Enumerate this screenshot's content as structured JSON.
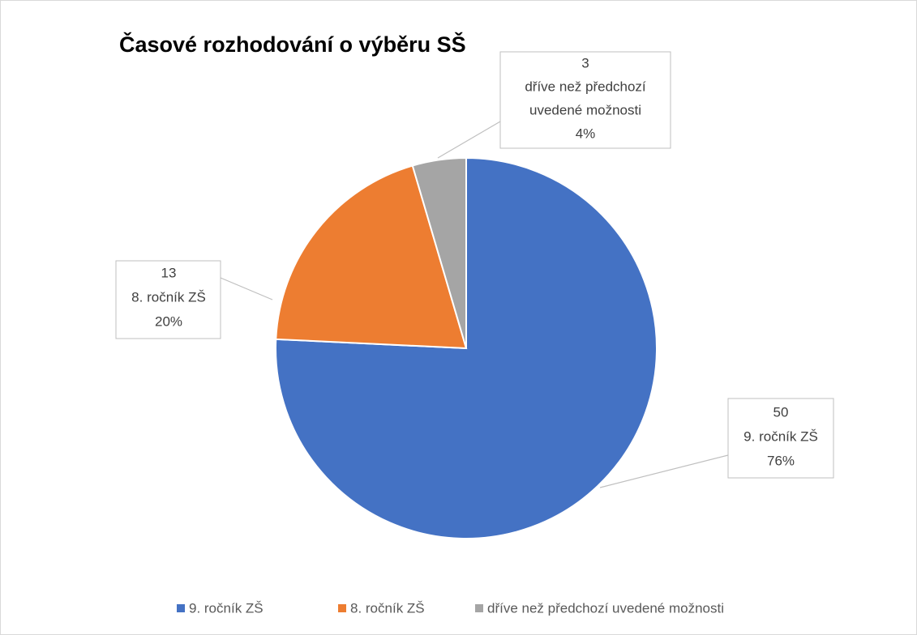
{
  "chart_data": {
    "type": "pie",
    "title": "Časové rozhodování o výběru SŠ",
    "categories": [
      "9. ročník ZŠ",
      "8. ročník ZŠ",
      "dříve než předchozí uvedené možnosti"
    ],
    "values": [
      50,
      13,
      3
    ],
    "percent_labels": [
      "76%",
      "20%",
      "4%"
    ],
    "colors": [
      "#4472c4",
      "#ed7d31",
      "#a5a5a5"
    ],
    "legend": "bottom"
  }
}
